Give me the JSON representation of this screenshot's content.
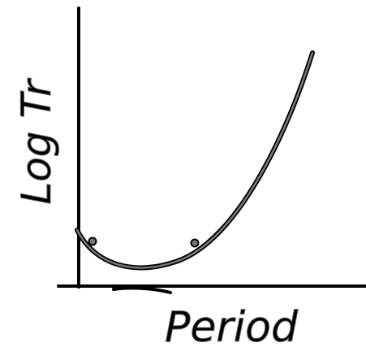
{
  "axes": {
    "x_label": "Period",
    "y_label": "Log Tr"
  }
}
